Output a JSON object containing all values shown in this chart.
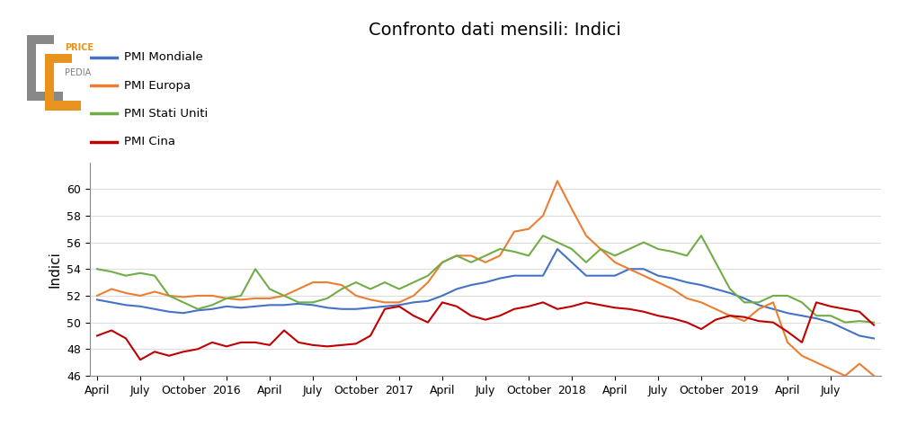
{
  "title": "Confronto dati mensili: Indici",
  "ylabel": "Indici",
  "colors": {
    "pmi_mondiale": "#4472C4",
    "pmi_europa": "#ED7D31",
    "pmi_stati_uniti": "#70AD47",
    "pmi_cina": "#C00000"
  },
  "legend_labels": [
    "PMI Mondiale",
    "PMI Europa",
    "PMI Stati Uniti",
    "PMI Cina"
  ],
  "ylim": [
    46,
    62
  ],
  "yticks": [
    46,
    48,
    50,
    52,
    54,
    56,
    58,
    60
  ],
  "background_color": "#ffffff",
  "pmi_mondiale": [
    51.7,
    51.5,
    51.3,
    51.2,
    51.0,
    50.8,
    50.7,
    50.9,
    51.0,
    51.2,
    51.1,
    51.2,
    51.3,
    51.3,
    51.4,
    51.3,
    51.1,
    51.0,
    51.0,
    51.1,
    51.2,
    51.3,
    51.5,
    51.6,
    52.0,
    52.5,
    52.8,
    53.0,
    53.3,
    53.5,
    53.5,
    53.5,
    55.5,
    54.5,
    53.5,
    53.5,
    53.5,
    54.0,
    54.0,
    53.5,
    53.3,
    53.0,
    52.8,
    52.5,
    52.2,
    51.8,
    51.3,
    51.0,
    50.7,
    50.5,
    50.3,
    50.0,
    49.5,
    49.0,
    48.8
  ],
  "pmi_europa": [
    52.0,
    52.5,
    52.2,
    52.0,
    52.3,
    52.0,
    51.9,
    52.0,
    52.0,
    51.8,
    51.7,
    51.8,
    51.8,
    52.0,
    52.5,
    53.0,
    53.0,
    52.8,
    52.0,
    51.7,
    51.5,
    51.5,
    52.0,
    53.0,
    54.5,
    55.0,
    55.0,
    54.5,
    55.0,
    56.8,
    57.0,
    58.0,
    60.6,
    58.5,
    56.5,
    55.5,
    54.5,
    54.0,
    53.5,
    53.0,
    52.5,
    51.8,
    51.5,
    51.0,
    50.5,
    50.1,
    51.0,
    51.5,
    48.5,
    47.5,
    47.0,
    46.5,
    46.0,
    46.9,
    46.0
  ],
  "pmi_stati_uniti": [
    54.0,
    53.8,
    53.5,
    53.7,
    53.5,
    52.0,
    51.5,
    51.0,
    51.3,
    51.8,
    52.0,
    54.0,
    52.5,
    52.0,
    51.5,
    51.5,
    51.8,
    52.5,
    53.0,
    52.5,
    53.0,
    52.5,
    53.0,
    53.5,
    54.5,
    55.0,
    54.5,
    55.0,
    55.5,
    55.3,
    55.0,
    56.5,
    56.0,
    55.5,
    54.5,
    55.5,
    55.0,
    55.5,
    56.0,
    55.5,
    55.3,
    55.0,
    56.5,
    54.5,
    52.5,
    51.5,
    51.5,
    52.0,
    52.0,
    51.5,
    50.5,
    50.5,
    50.0,
    50.1,
    50.0
  ],
  "pmi_cina": [
    49.0,
    49.4,
    48.8,
    47.2,
    47.8,
    47.5,
    47.8,
    48.0,
    48.5,
    48.2,
    48.5,
    48.5,
    48.3,
    49.4,
    48.5,
    48.3,
    48.2,
    48.3,
    48.4,
    49.0,
    51.0,
    51.2,
    50.5,
    50.0,
    51.5,
    51.2,
    50.5,
    50.2,
    50.5,
    51.0,
    51.2,
    51.5,
    51.0,
    51.2,
    51.5,
    51.3,
    51.1,
    51.0,
    50.8,
    50.5,
    50.3,
    50.0,
    49.5,
    50.2,
    50.5,
    50.4,
    50.1,
    50.0,
    49.3,
    48.5,
    51.5,
    51.2,
    51.0,
    50.8,
    49.8
  ],
  "x_tick_labels": [
    "April",
    "July",
    "October",
    "2016",
    "April",
    "July",
    "October",
    "2017",
    "April",
    "July",
    "October",
    "2018",
    "April",
    "July",
    "October",
    "2019",
    "April",
    "July"
  ],
  "x_tick_positions": [
    0,
    3,
    6,
    9,
    12,
    15,
    18,
    21,
    24,
    27,
    30,
    33,
    36,
    39,
    42,
    45,
    48,
    51
  ],
  "logo_text_price": "PRICE",
  "logo_text_pedia": "PEDIA",
  "logo_color_orange": "#E8931D",
  "logo_color_gray": "#808080"
}
